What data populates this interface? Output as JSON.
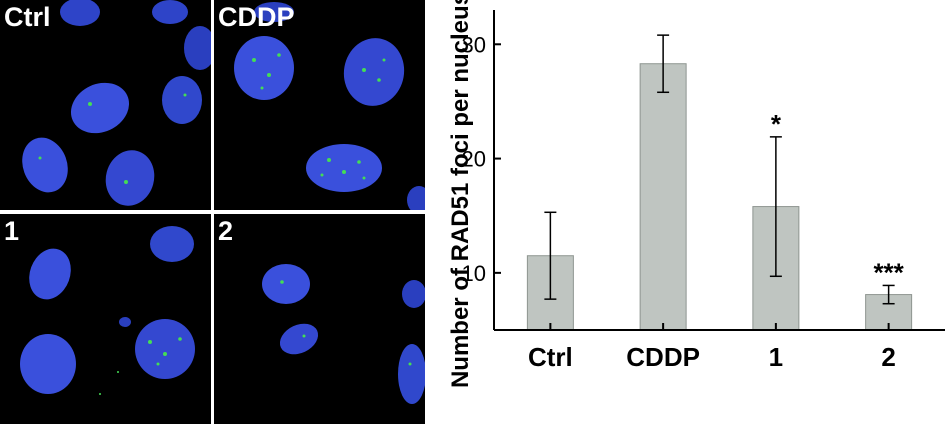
{
  "panels": [
    {
      "label": "Ctrl"
    },
    {
      "label": "CDDP"
    },
    {
      "label": "1"
    },
    {
      "label": "2"
    }
  ],
  "colors": {
    "nucleus": "#3a4fd6",
    "foci": "#44dd55",
    "bar_fill": "#bfc5c1",
    "bar_stroke": "#8e9590",
    "axis": "#000000"
  },
  "chart_data": {
    "type": "bar",
    "categories": [
      "Ctrl",
      "CDDP",
      "1",
      "2"
    ],
    "values": [
      11.5,
      28.3,
      15.8,
      8.1
    ],
    "errors": [
      3.8,
      2.5,
      6.1,
      0.8
    ],
    "significance": [
      "",
      "",
      "*",
      "***"
    ],
    "ylabel": "Number of RAD51 foci per nucleus",
    "yticks": [
      10,
      20,
      30
    ],
    "ylim": [
      5,
      33
    ],
    "grid": false
  }
}
